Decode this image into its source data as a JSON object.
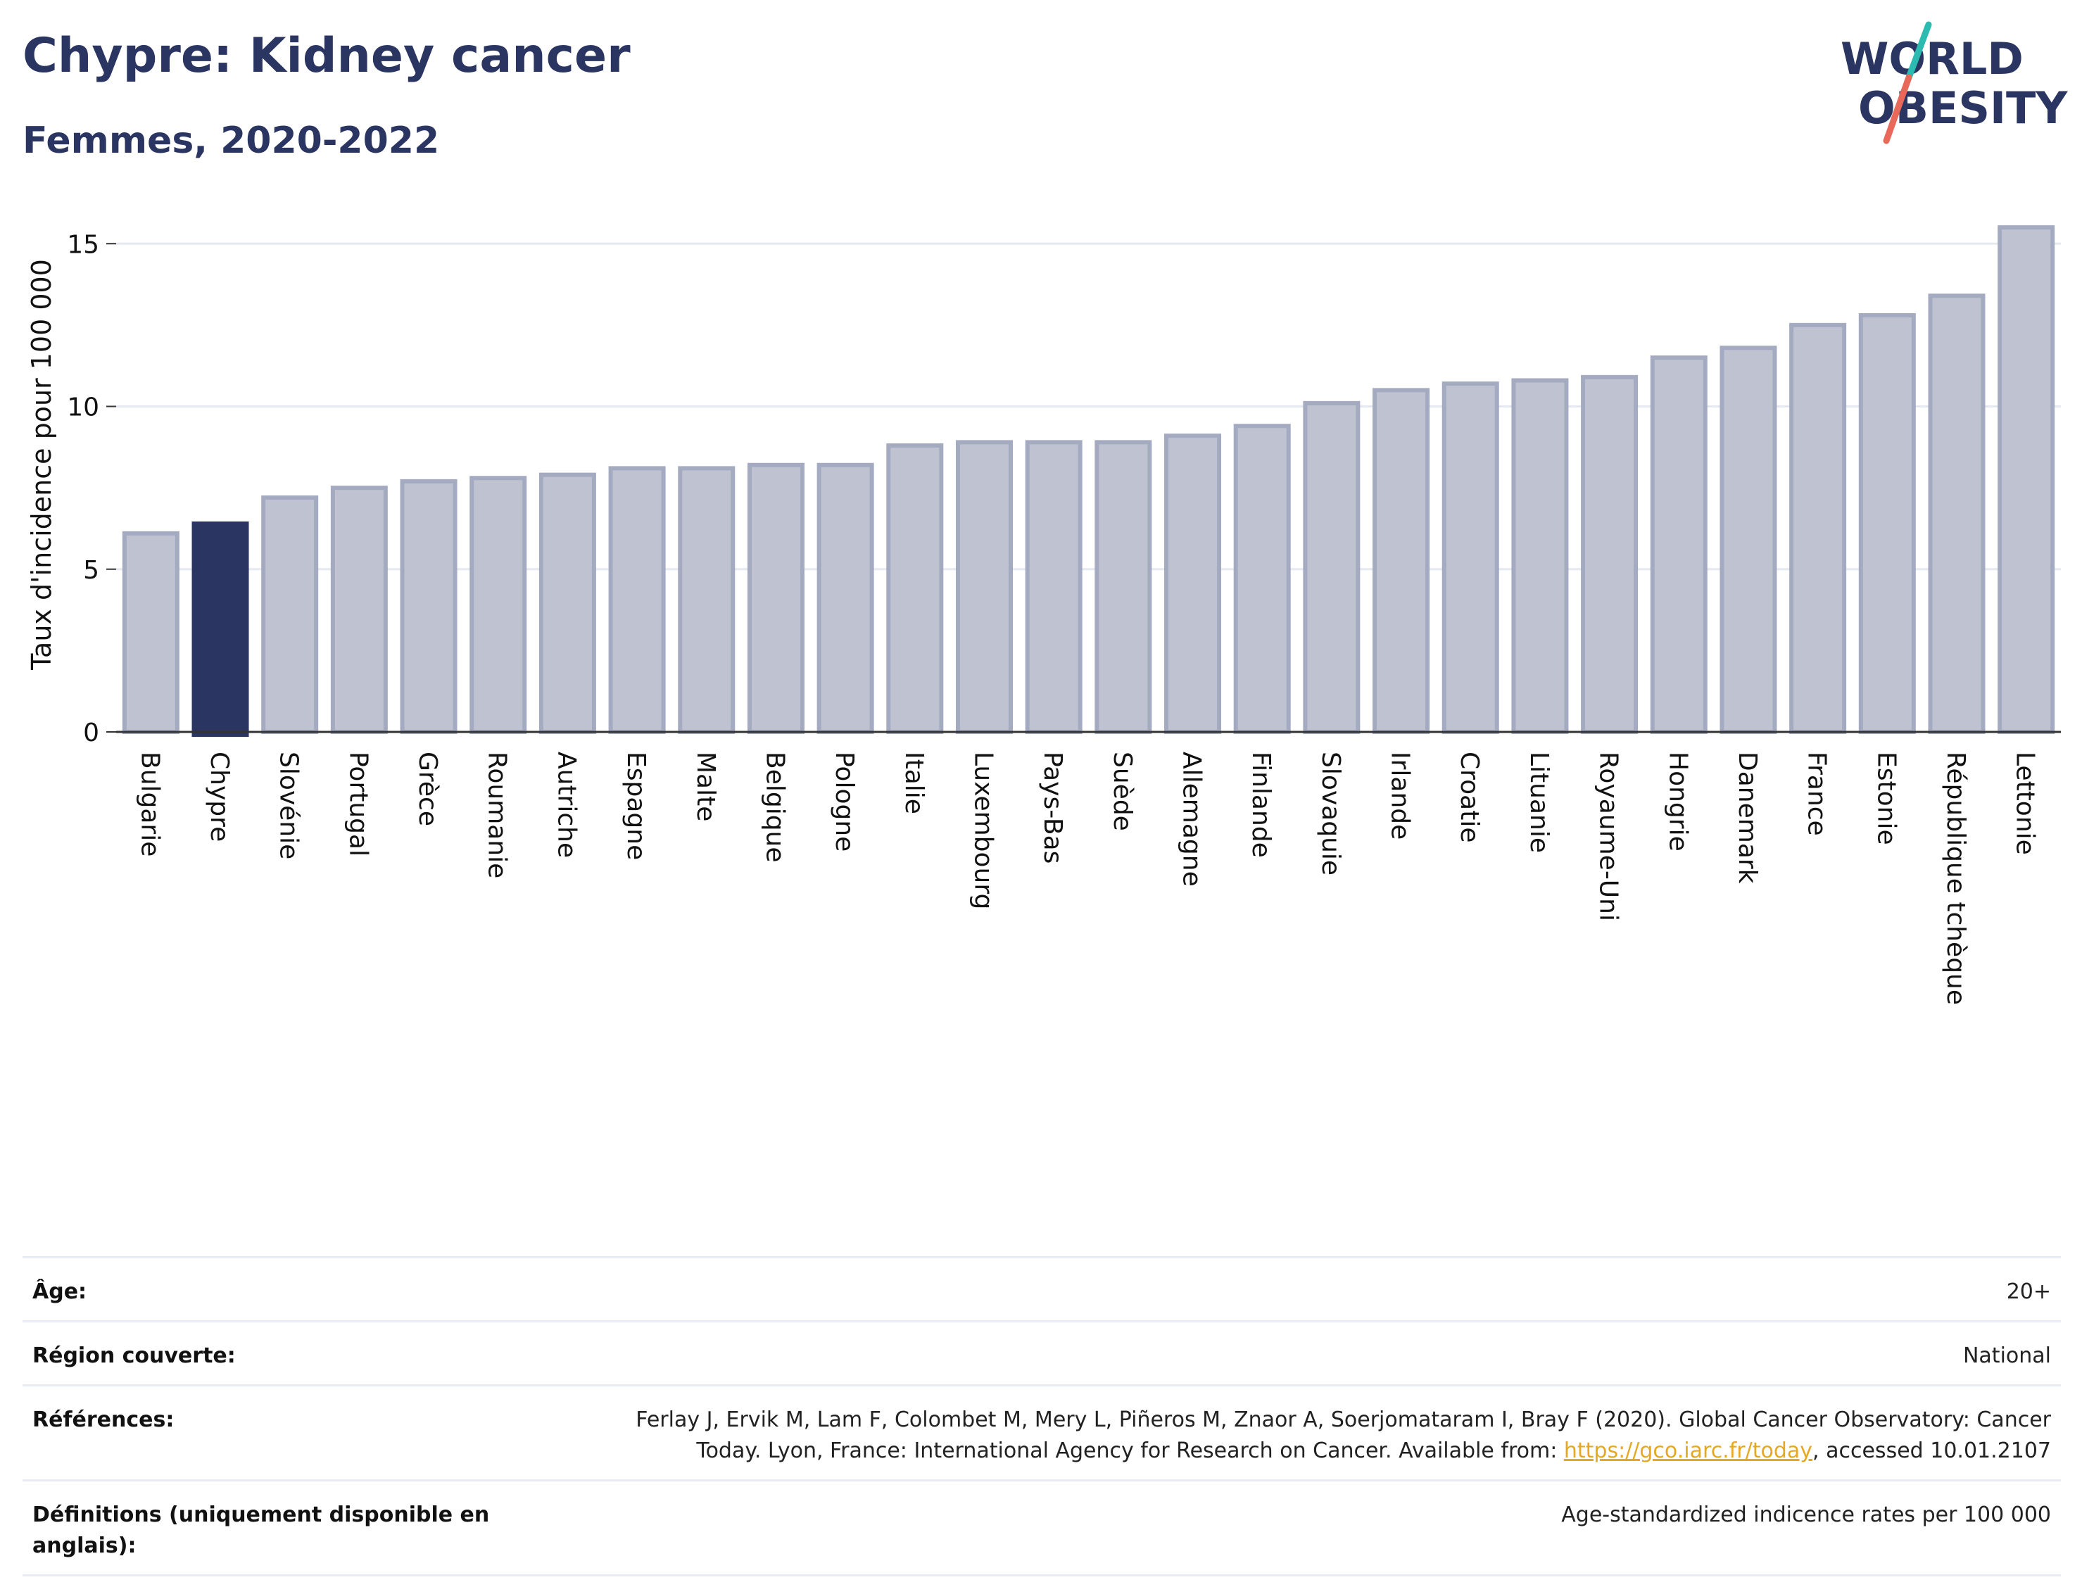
{
  "header": {
    "title": "Chypre: Kidney cancer",
    "subtitle": "Femmes, 2020-2022"
  },
  "logo": {
    "line1": "WORLD",
    "line2": "OBESITY",
    "accent_teal": "#2bbbb0",
    "accent_coral": "#e8685a"
  },
  "colors": {
    "bar_default": "#bfc3d1",
    "bar_border": "#a4aac0",
    "bar_highlight": "#2b3561",
    "text": "#2b3561"
  },
  "chart_data": {
    "type": "bar",
    "ylabel": "Taux d'incidence pour 100 000",
    "ylim": [
      0,
      16
    ],
    "yticks": [
      0,
      5,
      10,
      15
    ],
    "grid": true,
    "highlight": "Chypre",
    "categories": [
      "Bulgarie",
      "Chypre",
      "Slovénie",
      "Portugal",
      "Grèce",
      "Roumanie",
      "Autriche",
      "Espagne",
      "Malte",
      "Belgique",
      "Pologne",
      "Italie",
      "Luxembourg",
      "Pays-Bas",
      "Suède",
      "Allemagne",
      "Finlande",
      "Slovaquie",
      "Irlande",
      "Croatie",
      "Lituanie",
      "Royaume-Uni",
      "Hongrie",
      "Danemark",
      "France",
      "Estonie",
      "République tchèque",
      "Lettonie"
    ],
    "values": [
      6.1,
      6.4,
      7.2,
      7.5,
      7.7,
      7.8,
      7.9,
      8.1,
      8.1,
      8.2,
      8.2,
      8.8,
      8.9,
      8.9,
      8.9,
      9.1,
      9.4,
      10.1,
      10.5,
      10.7,
      10.8,
      10.9,
      11.5,
      11.8,
      12.5,
      12.8,
      13.4,
      15.5
    ]
  },
  "info": [
    {
      "label": "Âge:",
      "value": "20+"
    },
    {
      "label": "Région couverte:",
      "value": "National"
    },
    {
      "label": "Références:",
      "value_pre": "Ferlay J, Ervik M, Lam F, Colombet M, Mery L, Piñeros M, Znaor A, Soerjomataram I, Bray F (2020). Global Cancer Observatory: Cancer Today. Lyon, France: International Agency for Research on Cancer. Available from: ",
      "link": "https://gco.iarc.fr/today",
      "value_post": ", accessed 10.01.2107"
    },
    {
      "label": "Définitions (uniquement disponible en anglais):",
      "value": "Age-standardized indicence rates per 100 000"
    }
  ]
}
